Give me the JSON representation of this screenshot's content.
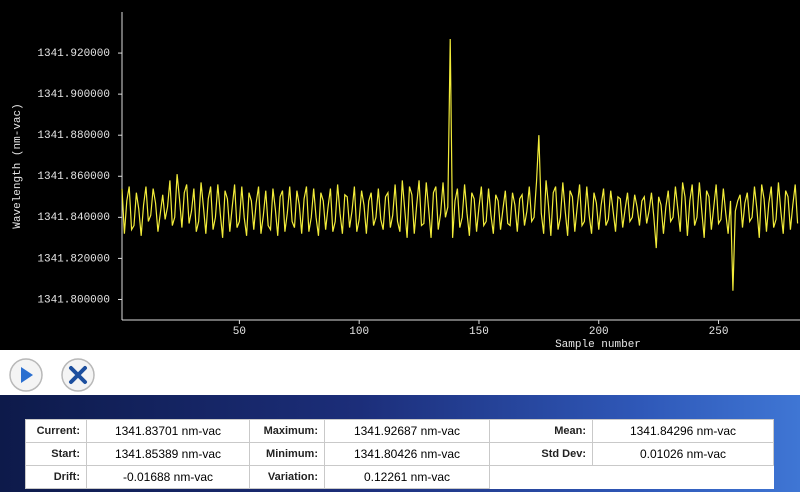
{
  "chart_data": {
    "type": "line",
    "xlabel": "Sample number",
    "ylabel": "Wavelength (nm-vac)",
    "xlim": [
      1,
      284
    ],
    "ylim": [
      1341.79,
      1341.94
    ],
    "xticks": [
      50,
      100,
      150,
      200,
      250
    ],
    "yticks": [
      {
        "value": 1341.8,
        "label": "1341.800000"
      },
      {
        "value": 1341.82,
        "label": "1341.820000"
      },
      {
        "value": 1341.84,
        "label": "1341.840000"
      },
      {
        "value": 1341.86,
        "label": "1341.860000"
      },
      {
        "value": 1341.88,
        "label": "1341.880000"
      },
      {
        "value": 1341.9,
        "label": "1341.900000"
      },
      {
        "value": 1341.92,
        "label": "1341.920000"
      }
    ],
    "grid": false,
    "series": [
      {
        "color": "#f2ec3a",
        "x": [
          1,
          2,
          3,
          4,
          5,
          6,
          7,
          8,
          9,
          10,
          11,
          12,
          13,
          14,
          15,
          16,
          17,
          18,
          19,
          20,
          21,
          22,
          23,
          24,
          25,
          26,
          27,
          28,
          29,
          30,
          31,
          32,
          33,
          34,
          35,
          36,
          37,
          38,
          39,
          40,
          41,
          42,
          43,
          44,
          45,
          46,
          47,
          48,
          49,
          50,
          51,
          52,
          53,
          54,
          55,
          56,
          57,
          58,
          59,
          60,
          61,
          62,
          63,
          64,
          65,
          66,
          67,
          68,
          69,
          70,
          71,
          72,
          73,
          74,
          75,
          76,
          77,
          78,
          79,
          80,
          81,
          82,
          83,
          84,
          85,
          86,
          87,
          88,
          89,
          90,
          91,
          92,
          93,
          94,
          95,
          96,
          97,
          98,
          99,
          100,
          101,
          102,
          103,
          104,
          105,
          106,
          107,
          108,
          109,
          110,
          111,
          112,
          113,
          114,
          115,
          116,
          117,
          118,
          119,
          120,
          121,
          122,
          123,
          124,
          125,
          126,
          127,
          128,
          129,
          130,
          131,
          132,
          133,
          134,
          135,
          136,
          137,
          138,
          139,
          140,
          141,
          142,
          143,
          144,
          145,
          146,
          147,
          148,
          149,
          150,
          151,
          152,
          153,
          154,
          155,
          156,
          157,
          158,
          159,
          160,
          161,
          162,
          163,
          164,
          165,
          166,
          167,
          168,
          169,
          170,
          171,
          172,
          173,
          174,
          175,
          176,
          177,
          178,
          179,
          180,
          181,
          182,
          183,
          184,
          185,
          186,
          187,
          188,
          189,
          190,
          191,
          192,
          193,
          194,
          195,
          196,
          197,
          198,
          199,
          200,
          201,
          202,
          203,
          204,
          205,
          206,
          207,
          208,
          209,
          210,
          211,
          212,
          213,
          214,
          215,
          216,
          217,
          218,
          219,
          220,
          221,
          222,
          223,
          224,
          225,
          226,
          227,
          228,
          229,
          230,
          231,
          232,
          233,
          234,
          235,
          236,
          237,
          238,
          239,
          240,
          241,
          242,
          243,
          244,
          245,
          246,
          247,
          248,
          249,
          250,
          251,
          252,
          253,
          254,
          255,
          256,
          257,
          258,
          259,
          260,
          261,
          262,
          263,
          264,
          265,
          266,
          267,
          268,
          269,
          270,
          271,
          272,
          273,
          274,
          275,
          276,
          277,
          278,
          279,
          280,
          281,
          282,
          283
        ],
        "values": [
          1341.85389,
          1341.832,
          1341.848,
          1341.855,
          1341.834,
          1341.836,
          1341.852,
          1341.844,
          1341.831,
          1341.846,
          1341.855,
          1341.838,
          1341.841,
          1341.854,
          1341.847,
          1341.833,
          1341.842,
          1341.851,
          1341.839,
          1341.845,
          1341.858,
          1341.836,
          1341.84,
          1341.861,
          1341.849,
          1341.835,
          1341.852,
          1341.856,
          1341.837,
          1341.843,
          1341.854,
          1341.833,
          1341.838,
          1341.857,
          1341.845,
          1341.832,
          1341.849,
          1341.855,
          1341.834,
          1341.84,
          1341.856,
          1341.842,
          1341.83,
          1341.853,
          1341.849,
          1341.833,
          1341.845,
          1341.856,
          1341.835,
          1341.838,
          1341.855,
          1341.84,
          1341.831,
          1341.852,
          1341.848,
          1341.834,
          1341.847,
          1341.855,
          1341.832,
          1341.841,
          1341.853,
          1341.836,
          1341.834,
          1341.854,
          1341.844,
          1341.831,
          1341.85,
          1341.853,
          1341.833,
          1341.842,
          1341.855,
          1341.838,
          1341.835,
          1341.853,
          1341.846,
          1341.832,
          1341.849,
          1341.855,
          1341.833,
          1341.84,
          1341.854,
          1341.84,
          1341.831,
          1341.852,
          1341.848,
          1341.834,
          1341.845,
          1341.854,
          1341.833,
          1341.838,
          1341.856,
          1341.842,
          1341.832,
          1341.851,
          1341.85,
          1341.835,
          1341.843,
          1341.855,
          1341.833,
          1341.839,
          1341.853,
          1341.846,
          1341.832,
          1341.848,
          1341.852,
          1341.836,
          1341.84,
          1341.854,
          1341.839,
          1341.834,
          1341.85,
          1341.852,
          1341.835,
          1341.841,
          1341.856,
          1341.838,
          1341.833,
          1341.858,
          1341.844,
          1341.83,
          1341.855,
          1341.851,
          1341.832,
          1341.846,
          1341.858,
          1341.836,
          1341.837,
          1341.857,
          1341.844,
          1341.83,
          1341.852,
          1341.855,
          1341.834,
          1341.842,
          1341.857,
          1341.84,
          1341.845,
          1341.92687,
          1341.83,
          1341.848,
          1341.854,
          1341.835,
          1341.84,
          1341.856,
          1341.842,
          1341.831,
          1341.852,
          1341.849,
          1341.833,
          1341.845,
          1341.855,
          1341.836,
          1341.838,
          1341.854,
          1341.841,
          1341.832,
          1341.851,
          1341.848,
          1341.834,
          1341.844,
          1341.853,
          1341.837,
          1341.836,
          1341.852,
          1341.846,
          1341.833,
          1341.849,
          1341.851,
          1341.836,
          1341.843,
          1341.855,
          1341.838,
          1341.84,
          1341.857,
          1341.88,
          1341.842,
          1341.832,
          1341.858,
          1341.846,
          1341.831,
          1341.852,
          1341.855,
          1341.834,
          1341.84,
          1341.857,
          1341.843,
          1341.831,
          1341.853,
          1341.85,
          1341.833,
          1341.845,
          1341.856,
          1341.836,
          1341.838,
          1341.855,
          1341.841,
          1341.832,
          1341.852,
          1341.847,
          1341.834,
          1341.846,
          1341.854,
          1341.836,
          1341.839,
          1341.853,
          1341.843,
          1341.833,
          1341.85,
          1341.849,
          1341.835,
          1341.844,
          1341.852,
          1341.838,
          1341.84,
          1341.851,
          1341.845,
          1341.836,
          1341.848,
          1341.85,
          1341.837,
          1341.843,
          1341.852,
          1341.84,
          1341.825,
          1341.85,
          1341.846,
          1341.832,
          1341.845,
          1341.853,
          1341.838,
          1341.84,
          1341.855,
          1341.844,
          1341.833,
          1341.857,
          1341.85,
          1341.831,
          1341.848,
          1341.856,
          1341.836,
          1341.84,
          1341.857,
          1341.843,
          1341.83,
          1341.853,
          1341.85,
          1341.834,
          1341.845,
          1341.856,
          1341.837,
          1341.839,
          1341.854,
          1341.842,
          1341.832,
          1341.848,
          1341.80426,
          1341.843,
          1341.848,
          1341.851,
          1341.835,
          1341.847,
          1341.852,
          1341.838,
          1341.84,
          1341.855,
          1341.844,
          1341.83,
          1341.856,
          1341.849,
          1341.833,
          1341.847,
          1341.855,
          1341.835,
          1341.839,
          1341.857,
          1341.843,
          1341.832,
          1341.853,
          1341.85,
          1341.834,
          1341.846,
          1341.856,
          1341.83701
        ]
      }
    ]
  },
  "stats": {
    "rows": [
      [
        {
          "label": "Current:",
          "value": "1341.83701 nm-vac"
        },
        {
          "label": "Maximum:",
          "value": "1341.92687 nm-vac"
        },
        {
          "label": "Mean:",
          "value": "1341.84296 nm-vac"
        }
      ],
      [
        {
          "label": "Start:",
          "value": "1341.85389 nm-vac"
        },
        {
          "label": "Minimum:",
          "value": "1341.80426 nm-vac"
        },
        {
          "label": "Std Dev:",
          "value": "0.01026 nm-vac"
        }
      ],
      [
        {
          "label": "Drift:",
          "value": "-0.01688 nm-vac"
        },
        {
          "label": "Variation:",
          "value": "0.12261 nm-vac"
        }
      ]
    ]
  }
}
